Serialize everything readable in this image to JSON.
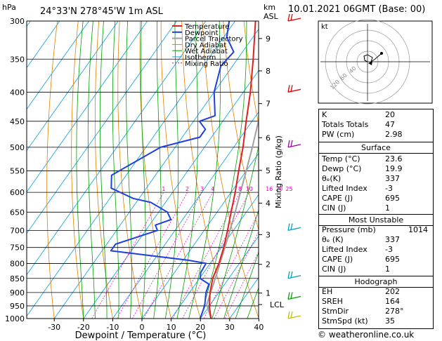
{
  "header": {
    "pressure_unit": "hPa",
    "location": "24°33'N 278°45'W 1m ASL",
    "height_unit_top": "km",
    "height_unit_bottom": "ASL",
    "datetime": "10.01.2021 06GMT (Base: 00)"
  },
  "colors": {
    "temperature": "#e02020",
    "dewpoint": "#2040e0",
    "parcel": "#a0a0a0",
    "dry_adiabat": "#e08000",
    "wet_adiabat": "#00a000",
    "isotherm": "#00a0e0",
    "mixing_ratio": "#e000c0"
  },
  "chart_data": {
    "type": "line",
    "subtype": "skew-t log-p",
    "xlabel": "Dewpoint / Temperature (°C)",
    "ylabel_right": "Mixing Ratio (g/kg)",
    "x_ticks": [
      -30,
      -20,
      -10,
      0,
      10,
      20,
      30,
      40
    ],
    "pressure_levels": [
      300,
      350,
      400,
      450,
      500,
      550,
      600,
      650,
      700,
      750,
      800,
      850,
      900,
      950,
      1000
    ],
    "height_ticks": [
      {
        "km": "9",
        "p": 322
      },
      {
        "km": "8",
        "p": 367
      },
      {
        "km": "7",
        "p": 419
      },
      {
        "km": "6",
        "p": 481
      },
      {
        "km": "5",
        "p": 549
      },
      {
        "km": "4",
        "p": 627
      },
      {
        "km": "3",
        "p": 712
      },
      {
        "km": "2",
        "p": 803
      },
      {
        "km": "1",
        "p": 902
      }
    ],
    "lcl_label": "LCL",
    "lcl_p": 945,
    "mixing_ratio_labels": [
      "1",
      "2",
      "3",
      "4",
      "8",
      "10",
      "16",
      "20",
      "25"
    ],
    "legend": [
      "Temperature",
      "Dewpoint",
      "Parcel Trajectory",
      "Dry Adiabat",
      "Wet Adiabat",
      "Isotherm",
      "Mixing Ratio"
    ],
    "temperature": [
      [
        1000,
        23.6
      ],
      [
        950,
        20.0
      ],
      [
        900,
        17.0
      ],
      [
        850,
        14.5
      ],
      [
        800,
        13.0
      ],
      [
        750,
        10.8
      ],
      [
        700,
        8.0
      ],
      [
        650,
        4.8
      ],
      [
        600,
        1.4
      ],
      [
        550,
        -2.6
      ],
      [
        500,
        -6.8
      ],
      [
        450,
        -12.0
      ],
      [
        400,
        -17.6
      ],
      [
        350,
        -24.6
      ],
      [
        300,
        -33.0
      ]
    ],
    "dewpoint": [
      [
        1000,
        19.9
      ],
      [
        950,
        18.4
      ],
      [
        900,
        15.6
      ],
      [
        870,
        14.6
      ],
      [
        850,
        10.2
      ],
      [
        830,
        9.0
      ],
      [
        800,
        8.6
      ],
      [
        790,
        2.0
      ],
      [
        760,
        -27.0
      ],
      [
        740,
        -27.0
      ],
      [
        700,
        -16.0
      ],
      [
        685,
        -18.0
      ],
      [
        670,
        -14.0
      ],
      [
        650,
        -17.0
      ],
      [
        625,
        -25.0
      ],
      [
        615,
        -32.0
      ],
      [
        590,
        -42.0
      ],
      [
        560,
        -45.0
      ],
      [
        500,
        -35.0
      ],
      [
        480,
        -24.0
      ],
      [
        465,
        -24.0
      ],
      [
        450,
        -28.0
      ],
      [
        440,
        -24.0
      ],
      [
        400,
        -30.0
      ],
      [
        360,
        -34.0
      ],
      [
        340,
        -33.0
      ],
      [
        320,
        -39.0
      ],
      [
        300,
        -42.0
      ]
    ],
    "parcel": [
      [
        1000,
        23.6
      ],
      [
        945,
        18.8
      ],
      [
        900,
        17.2
      ],
      [
        850,
        15.4
      ],
      [
        800,
        13.4
      ],
      [
        750,
        11.2
      ],
      [
        700,
        8.8
      ],
      [
        650,
        6.2
      ],
      [
        600,
        3.2
      ],
      [
        550,
        0.0
      ],
      [
        500,
        -3.6
      ],
      [
        450,
        -7.8
      ],
      [
        400,
        -12.8
      ],
      [
        350,
        -18.8
      ],
      [
        300,
        -26.4
      ]
    ]
  },
  "hodograph": {
    "unit": "kt",
    "ring_labels": [
      "40",
      "60",
      "120"
    ]
  },
  "indices": {
    "k_label": "K",
    "k": "20",
    "tt_label": "Totals Totals",
    "tt": "47",
    "pw_label": "PW (cm)",
    "pw": "2.98"
  },
  "surface": {
    "title": "Surface",
    "temp_label": "Temp (°C)",
    "temp": "23.6",
    "dewp_label": "Dewp (°C)",
    "dewp": "19.9",
    "theta_e_label": "θₑ(K)",
    "theta_e": "337",
    "li_label": "Lifted Index",
    "li": "-3",
    "cape_label": "CAPE (J)",
    "cape": "695",
    "cin_label": "CIN (J)",
    "cin": "1"
  },
  "most_unstable": {
    "title": "Most Unstable",
    "pressure_label": "Pressure (mb)",
    "pressure": "1014",
    "theta_e_label": "θₑ (K)",
    "theta_e": "337",
    "li_label": "Lifted Index",
    "li": "-3",
    "cape_label": "CAPE (J)",
    "cape": "695",
    "cin_label": "CIN (J)",
    "cin": "1"
  },
  "hodograph_table": {
    "title": "Hodograph",
    "eh_label": "EH",
    "eh": "202",
    "sreh_label": "SREH",
    "sreh": "164",
    "stmdir_label": "StmDir",
    "stmdir": "278°",
    "stmspd_label": "StmSpd (kt)",
    "stmspd": "35"
  },
  "footer": {
    "copyright": "© weatheronline.co.uk"
  }
}
